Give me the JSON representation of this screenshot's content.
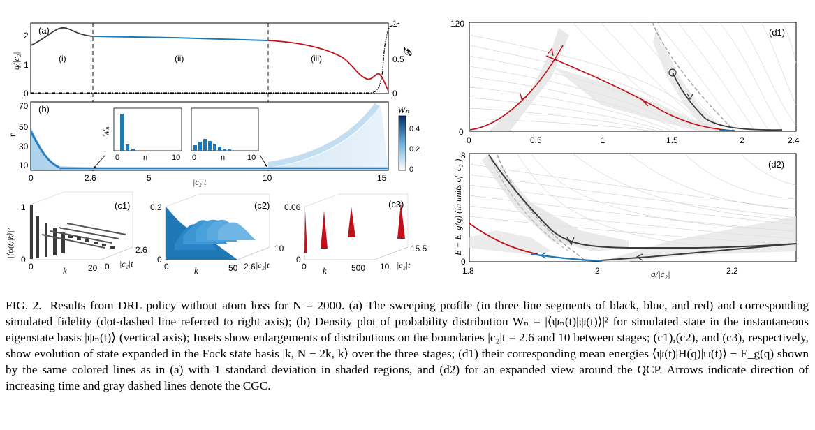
{
  "colors": {
    "stage1": "#3a3a3a",
    "stage2": "#1f77b4",
    "stage3": "#c0111a",
    "cgc": "#9a9a9a",
    "shade": "#e3e3e3"
  },
  "panel_a": {
    "label": "(a)",
    "stage_labels": [
      "(i)",
      "(ii)",
      "(iii)"
    ],
    "ylabel": "q/|c₂|",
    "y2label": "𝓕",
    "yticks": [
      "2",
      "1",
      "0"
    ],
    "y2ticks": [
      "1",
      "0.5",
      "0"
    ]
  },
  "panel_b": {
    "label": "(b)",
    "ylabel": "n",
    "yticks": [
      "70",
      "50",
      "30",
      "10"
    ],
    "xticks": [
      "0",
      "2.6",
      "5",
      "10",
      "15"
    ],
    "xlabel": "|c₂|t",
    "colorbar_label": "Wₙ",
    "colorbar_ticks": [
      "0.4",
      "0.2",
      "0"
    ],
    "inset1": {
      "ylabel": "Wₙ",
      "xlabel": "n",
      "xticks": [
        "0",
        "10"
      ]
    },
    "inset2": {
      "xlabel": "n",
      "xticks": [
        "0",
        "10"
      ]
    }
  },
  "panel_c": [
    {
      "label": "(c1)",
      "zlabel": "|⟨ψ(t)|k⟩|²",
      "zticks": [
        "1",
        "0"
      ],
      "xlabel": "k",
      "xticks": [
        "0",
        "20"
      ],
      "ylabel": "|c₂|t",
      "yticks": [
        "2.6",
        "0"
      ]
    },
    {
      "label": "(c2)",
      "zticks": [
        "0.2",
        "0"
      ],
      "xlabel": "k",
      "xticks": [
        "0",
        "50"
      ],
      "ylabel": "|c₂|t",
      "yticks": [
        "10",
        "2.6"
      ]
    },
    {
      "label": "(c3)",
      "zticks": [
        "0.06",
        "0"
      ],
      "xlabel": "k",
      "xticks": [
        "0",
        "500"
      ],
      "ylabel": "|c₂|t",
      "yticks": [
        "15.5",
        "10"
      ]
    }
  ],
  "panel_d": {
    "ylabel": "E − E_g(q)  (in units of |c₂|)",
    "d1": {
      "label": "(d1)",
      "yticks": [
        "120",
        "0"
      ],
      "xticks": [
        "0",
        "0.5",
        "1",
        "1.5",
        "2",
        "2.4"
      ]
    },
    "d2": {
      "label": "(d2)",
      "yticks": [
        "8",
        "0"
      ],
      "xticks": [
        "1.8",
        "2",
        "2.2"
      ],
      "xlabel": "q/|c₂|"
    }
  },
  "caption": {
    "label": "FIG. 2.",
    "text": "Results from DRL policy without atom loss for N = 2000. (a) The sweeping profile (in three line segments of black, blue, and red) and corresponding simulated fidelity (dot-dashed line referred to right axis); (b) Density plot of probability distribution Wₙ = |⟨ψₙ(t)|ψ(t)⟩|² for simulated state in the instantaneous eigenstate basis |ψₙ(t)⟩ (vertical axis); Insets show enlargements of distributions on the boundaries |c₂|t = 2.6 and 10 between stages; (c1),(c2), and (c3), respectively, show evolution of state expanded in the Fock state basis |k, N − 2k, k⟩ over the three stages; (d1) their corresponding mean energies ⟨ψ(t)|H(q)|ψ(t)⟩ − E_g(q) shown by the same colored lines as in (a) with 1 standard deviation in shaded regions, and (d2) for an expanded view around the QCP. Arrows indicate direction of increasing time and gray dashed lines denote the CGC."
  }
}
